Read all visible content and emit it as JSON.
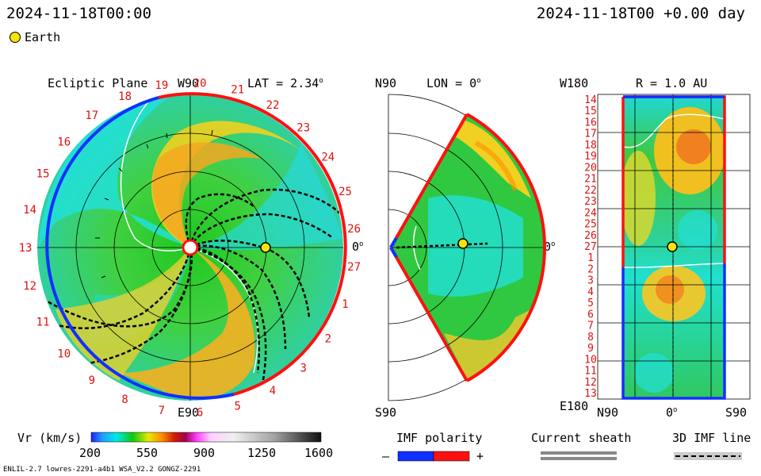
{
  "header": {
    "left_time": "2024-11-18T00:00",
    "right_time": "2024-11-18T00 +0.00 day"
  },
  "legend": {
    "earth_label": "Earth",
    "earth_color": "#f5e30a"
  },
  "panels": {
    "ecliptic": {
      "title": "Ecliptic Plane",
      "top_label": "W90",
      "bottom_label": "E90",
      "right_label": "0",
      "lat_label": "LAT = 2.34",
      "carrington_ticks": [
        "19",
        "20",
        "21",
        "22",
        "23",
        "24",
        "25",
        "26",
        "27",
        "1",
        "2",
        "3",
        "4",
        "5",
        "6",
        "7",
        "8",
        "9",
        "10",
        "11",
        "12",
        "13",
        "14",
        "15",
        "16",
        "17",
        "18"
      ]
    },
    "meridional": {
      "top_label": "N90",
      "bottom_label": "S90",
      "right_label": "0",
      "lon_label": "LON = 0"
    },
    "radial_map": {
      "top_label": "W180",
      "bottom_label": "E180",
      "r_label": "R = 1.0 AU",
      "x_ticks": [
        "N90",
        "0",
        "S90"
      ],
      "y_ticks": [
        "14",
        "15",
        "16",
        "17",
        "18",
        "19",
        "20",
        "21",
        "22",
        "23",
        "24",
        "25",
        "26",
        "27",
        "1",
        "2",
        "3",
        "4",
        "5",
        "6",
        "7",
        "8",
        "9",
        "10",
        "11",
        "12",
        "13"
      ]
    }
  },
  "colorbar": {
    "label": "Vr (km/s)",
    "ticks": [
      "200",
      "550",
      "900",
      "1250",
      "1600"
    ],
    "range": [
      200,
      1600
    ]
  },
  "imf": {
    "title": "IMF polarity",
    "minus": "–",
    "plus": "+",
    "neg_color": "#1030ff",
    "pos_color": "#ff1010"
  },
  "sheath": {
    "title": "Current sheath"
  },
  "imfline": {
    "title": "3D IMF line"
  },
  "footer": {
    "left": "ENLIL-2.7 lowres-2291-a4b1 WSA_V2.2 GONGZ-2291"
  },
  "chart_data": {
    "type": "heatmap",
    "title": "",
    "quantity": "Vr (km/s)",
    "value_range": [
      200,
      1600
    ],
    "earth": {
      "ecliptic_angle_deg": 0,
      "radius_au": 1.0
    }
  }
}
